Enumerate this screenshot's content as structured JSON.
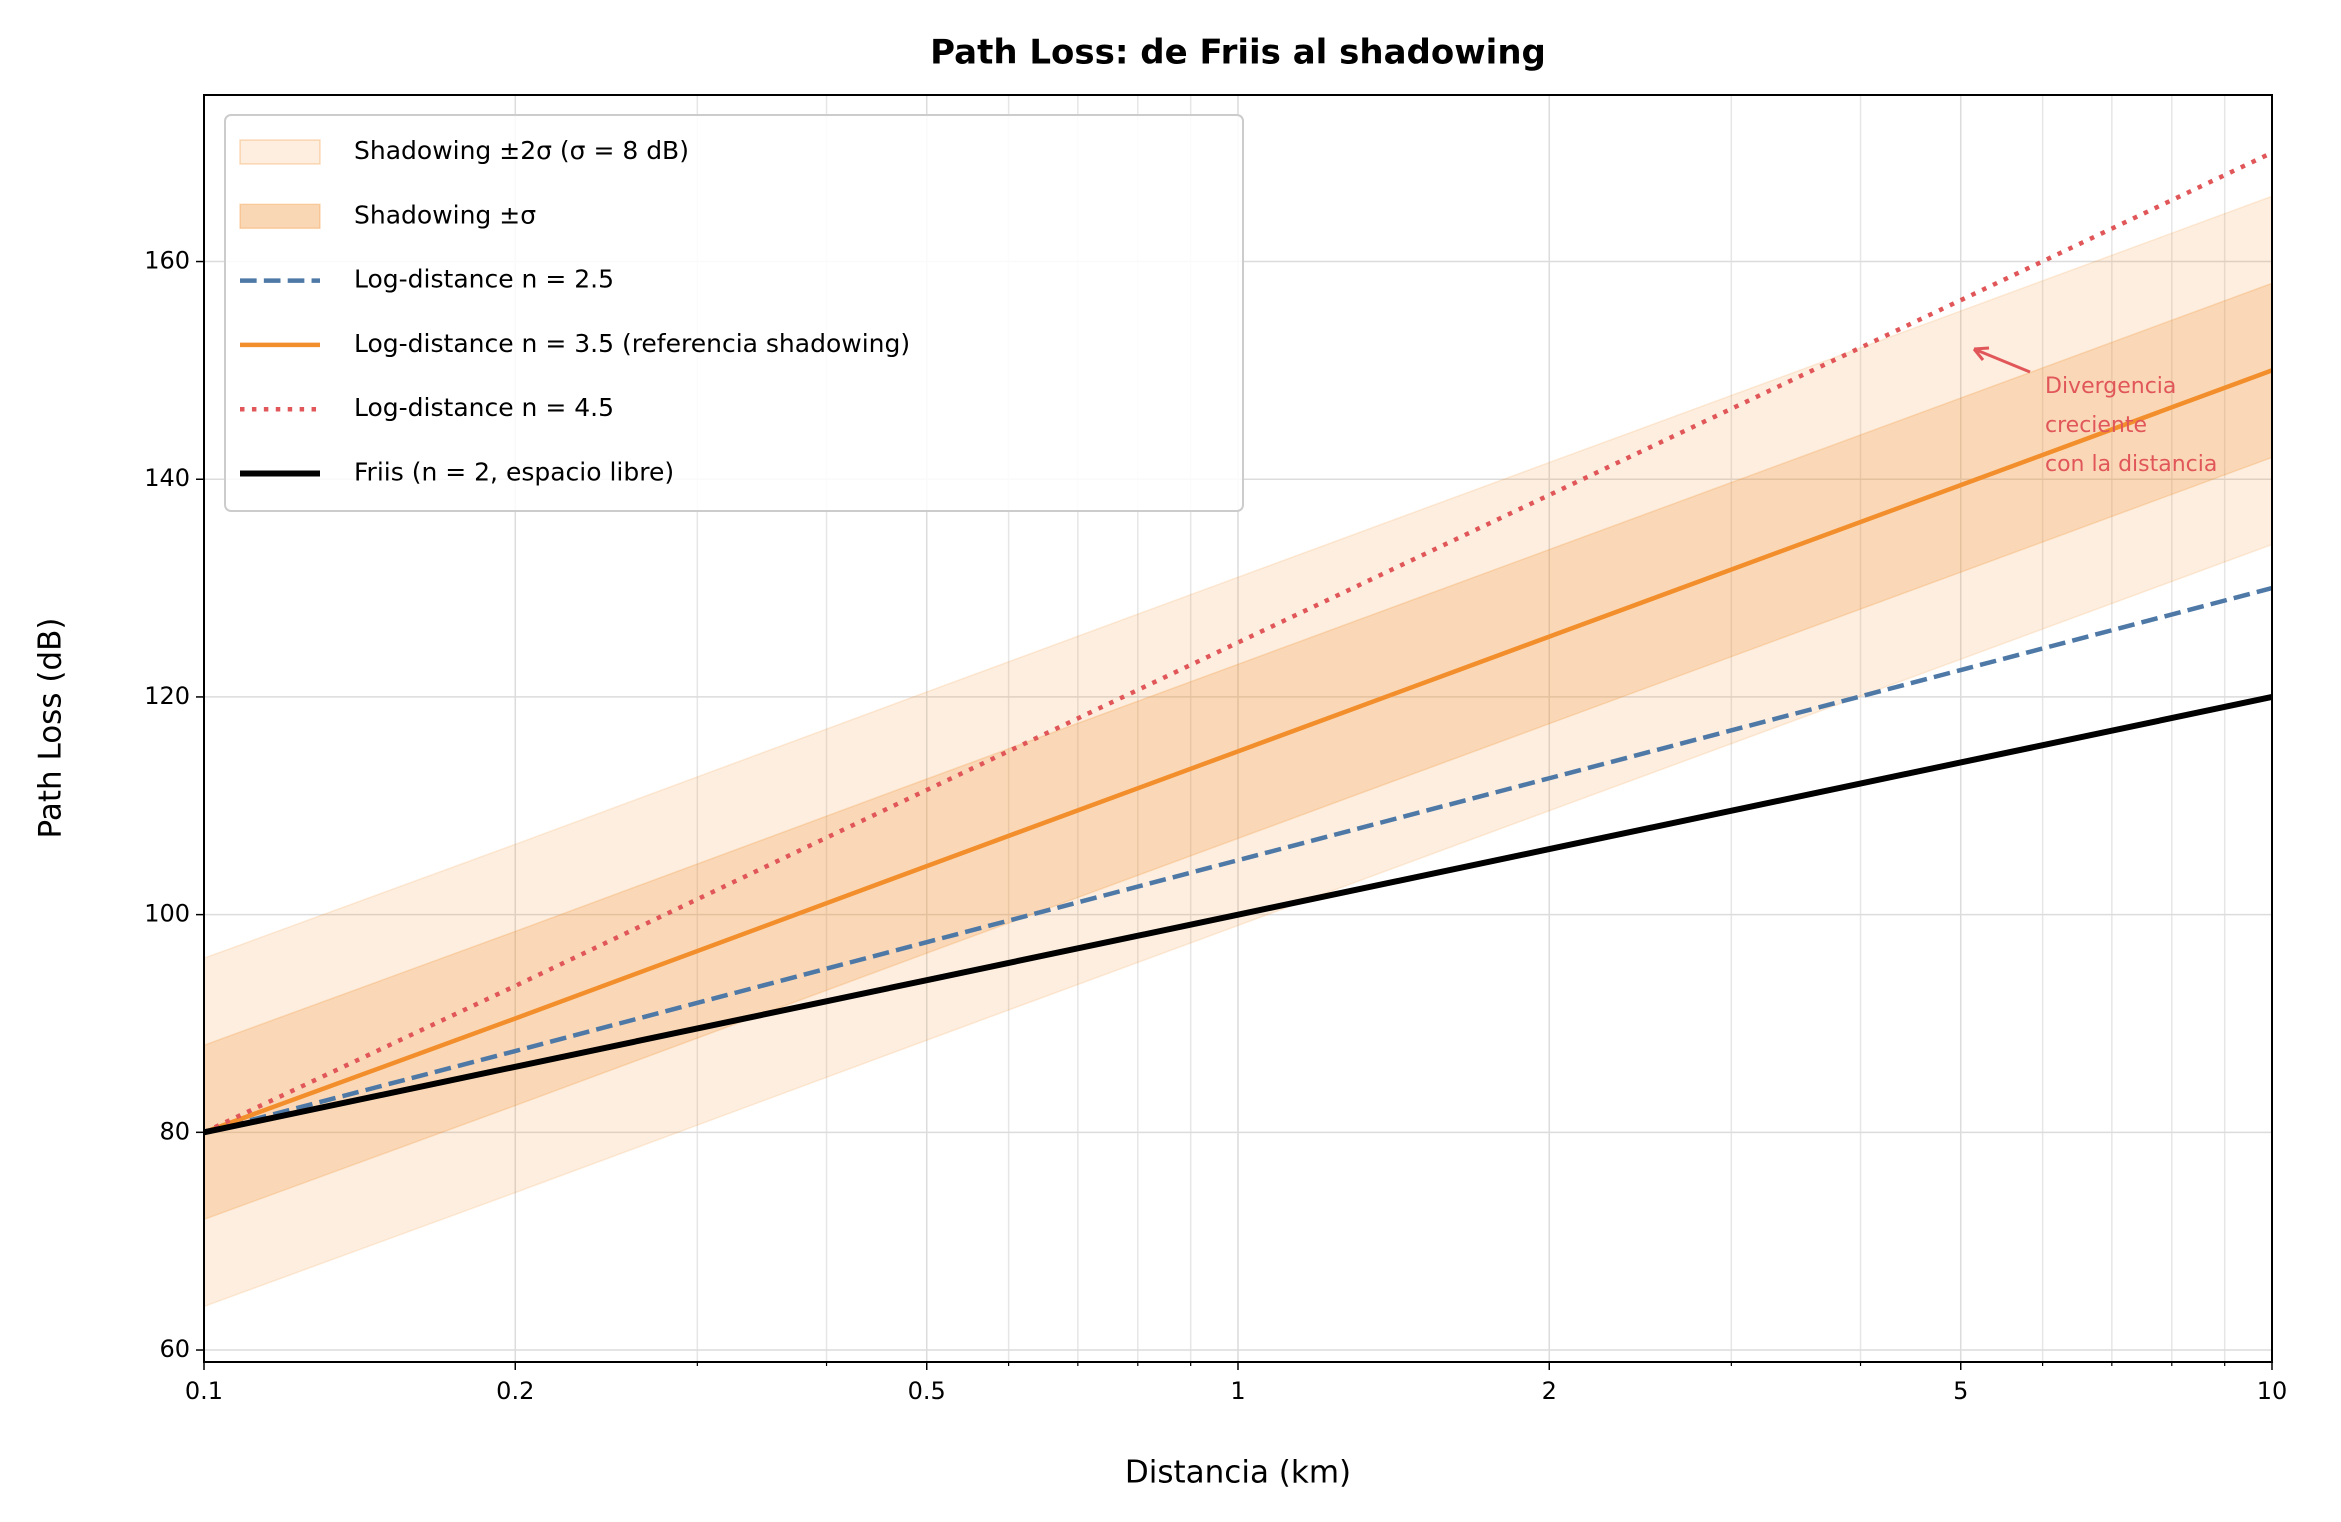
{
  "chart_data": {
    "type": "line",
    "title": "Path Loss: de Friis al shadowing",
    "xlabel": "Distancia (km)",
    "ylabel": "Path Loss (dB)",
    "x": [
      0.1,
      0.2,
      0.5,
      1,
      2,
      5,
      10
    ],
    "xscale": "log",
    "xlim": [
      0.1,
      10
    ],
    "xticks": [
      0.1,
      0.2,
      0.5,
      1,
      2,
      5,
      10
    ],
    "xminorticks": [
      0.3,
      0.4,
      0.6,
      0.7,
      0.8,
      0.9,
      3,
      4,
      6,
      7,
      8,
      9
    ],
    "ylim": [
      58.9,
      175.3
    ],
    "yticks": [
      60,
      80,
      100,
      120,
      140,
      160
    ],
    "grid": true,
    "legend": "upper left",
    "bands": [
      {
        "name": "Shadowing ±2σ (σ = 8 dB)",
        "color": "#f28e2b",
        "opacity": 0.15,
        "lower": [
          64,
          74.46,
          88.46,
          99,
          109.54,
          123.46,
          134
        ],
        "upper": [
          96,
          106.46,
          120.46,
          131,
          141.54,
          155.46,
          166
        ]
      },
      {
        "name": "Shadowing ±σ",
        "color": "#f28e2b",
        "opacity": 0.22,
        "lower": [
          72,
          82.46,
          96.46,
          107,
          117.54,
          131.46,
          142
        ],
        "upper": [
          88,
          98.46,
          112.46,
          123,
          133.54,
          147.46,
          158
        ]
      }
    ],
    "series": [
      {
        "name": "Log-distance n = 2.5",
        "color": "#4e79a7",
        "dash": "dashed",
        "width": 4.5,
        "values": [
          80,
          87.47,
          97.47,
          105,
          112.53,
          122.47,
          130
        ]
      },
      {
        "name": "Log-distance n = 3.5 (referencia shadowing)",
        "color": "#f28e2b",
        "dash": "solid",
        "width": 4.5,
        "values": [
          80,
          90.46,
          104.46,
          115,
          125.54,
          139.46,
          150
        ]
      },
      {
        "name": "Log-distance n = 4.5",
        "color": "#e15759",
        "dash": "dotted",
        "width": 4.5,
        "values": [
          80,
          93.45,
          111.45,
          125,
          138.55,
          156.45,
          170
        ]
      },
      {
        "name": "Friis (n = 2, espacio libre)",
        "color": "#000000",
        "dash": "solid",
        "width": 6,
        "values": [
          80,
          86.02,
          93.98,
          100,
          106.02,
          113.98,
          120
        ]
      }
    ],
    "annotation": {
      "lines": [
        "Divergencia",
        "creciente",
        "con la distancia"
      ],
      "color": "#e15759"
    }
  }
}
